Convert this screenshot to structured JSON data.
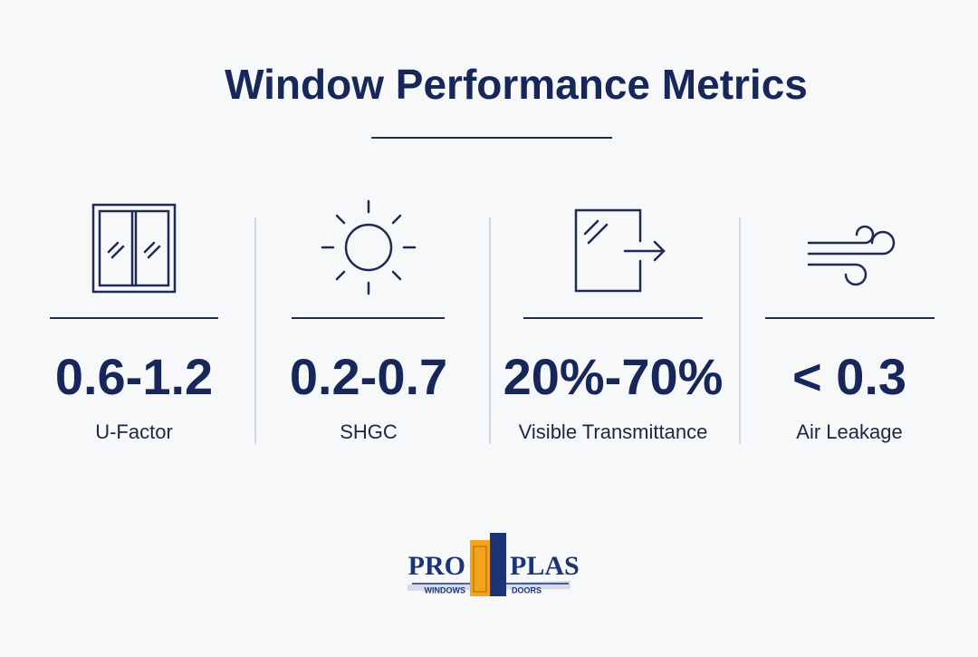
{
  "header": {
    "title": "Window Performance Metrics"
  },
  "metrics": [
    {
      "value": "0.6-1.2",
      "label": "U-Factor"
    },
    {
      "value": "0.2-0.7",
      "label": "SHGC"
    },
    {
      "value": "20%-70%",
      "label": "Visible Transmittance"
    },
    {
      "value": "< 0.3",
      "label": "Air Leakage"
    }
  ],
  "logo": {
    "left": "PRO",
    "right": "PLAS",
    "left_sub": "WINDOWS",
    "right_sub": "DOORS"
  }
}
